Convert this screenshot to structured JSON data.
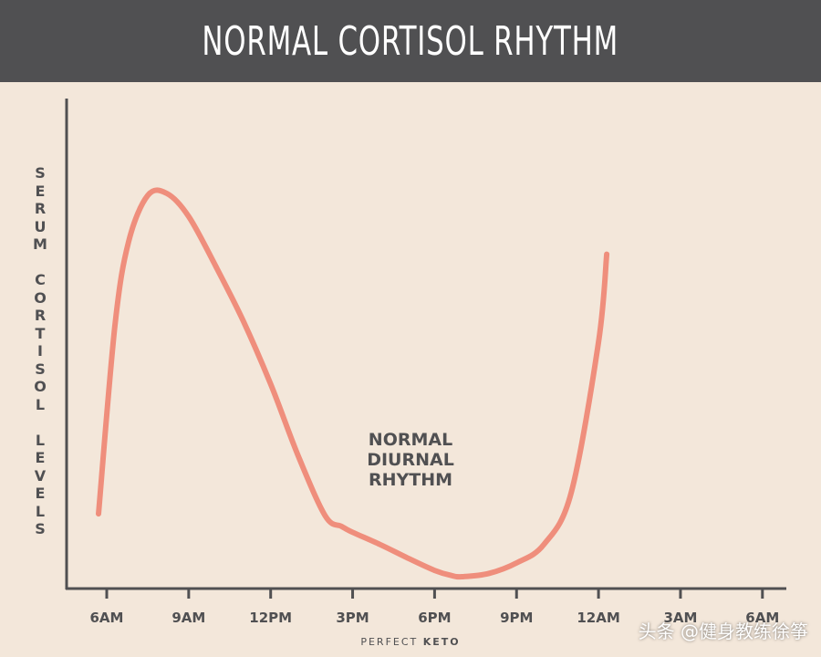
{
  "header": {
    "title": "NORMAL CORTISOL RHYTHM"
  },
  "colors": {
    "header_bg": "#505052",
    "background": "#f3e7da",
    "curve": "#ef8e7c",
    "axis": "#505052"
  },
  "chart_data": {
    "type": "line",
    "title": "NORMAL CORTISOL RHYTHM",
    "ylabel": "SERUM CORTISOL LEVELS",
    "xlabel": "",
    "x_ticks": [
      "6AM",
      "9AM",
      "12PM",
      "3PM",
      "6PM",
      "9PM",
      "12AM",
      "3AM",
      "6AM"
    ],
    "yaxis_ticks_shown": false,
    "grid": false,
    "annotation": [
      "NORMAL",
      "DIURNAL",
      "RHYTHM"
    ],
    "series": [
      {
        "x_hours_from_6am": [
          -0.3,
          0.3,
          0.8,
          1.5,
          2.2,
          3.0,
          4.0,
          5.0,
          6.0,
          7.0,
          8.0,
          8.6,
          9.0,
          10.0,
          11.0,
          12.0,
          12.6,
          13.0,
          14.0,
          15.0,
          16.0,
          17.0,
          18.0,
          18.3
        ],
        "values": [
          15,
          60,
          80,
          91,
          91.5,
          86,
          74,
          61,
          46,
          29,
          14.5,
          12,
          10.6,
          7.7,
          4.5,
          1.5,
          0.3,
          0,
          0.8,
          3.3,
          7.7,
          20,
          56,
          77
        ]
      }
    ],
    "ylim": [
      0,
      100
    ],
    "xlim": [
      -0.5,
      18.5
    ]
  },
  "brand": {
    "name_light": "PERFECT",
    "name_bold": "KETO"
  },
  "watermark": {
    "text": "头条 @健身教练徐筝"
  }
}
